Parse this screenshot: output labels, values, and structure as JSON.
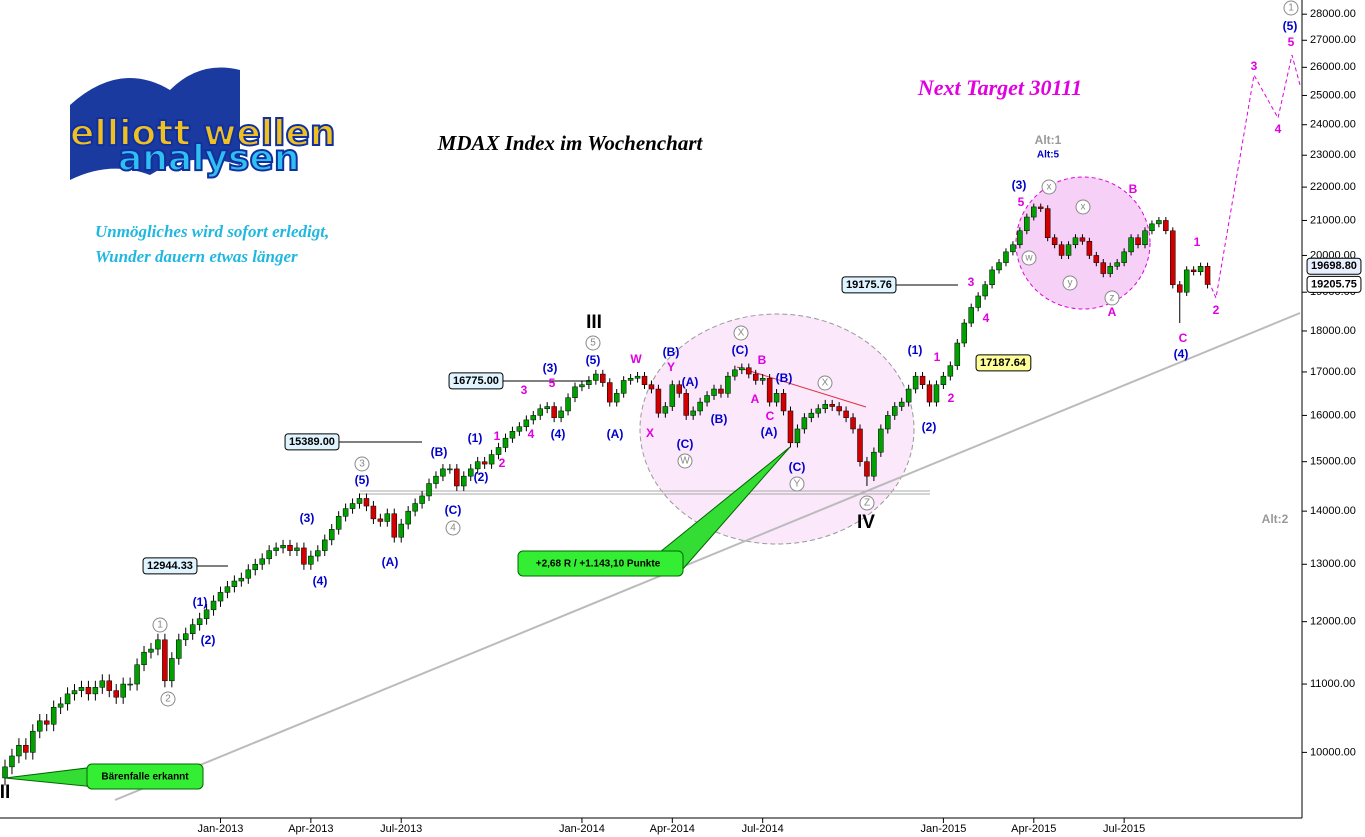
{
  "chart_data": {
    "type": "candlestick",
    "title": "MDAX Index im Wochenchart",
    "subtitle": "Next Target 30111",
    "motto": [
      "Unmögliches wird sofort erledigt,",
      "Wunder dauern etwas länger"
    ],
    "logo": [
      "elliott wellen",
      "analysen"
    ],
    "log_scale": true,
    "up_color": "#00a000",
    "down_color": "#d00000",
    "xlim": [
      -0.72,
      186.3
    ],
    "xticks": [
      {
        "value": 31,
        "label": "Jan-2013"
      },
      {
        "value": 44,
        "label": "Apr-2013"
      },
      {
        "value": 57,
        "label": "Jul-2013"
      },
      {
        "value": 83,
        "label": "Jan-2014"
      },
      {
        "value": 96,
        "label": "Apr-2014"
      },
      {
        "value": 109,
        "label": "Jul-2014"
      },
      {
        "value": 135,
        "label": "Jan-2015"
      },
      {
        "value": 148,
        "label": "Apr-2015"
      },
      {
        "value": 161,
        "label": "Jul-2015"
      }
    ],
    "ylim": [
      9100,
      28560
    ],
    "yticks": [
      {
        "value": 10000,
        "label": "10000.00"
      },
      {
        "value": 11000,
        "label": "11000.00"
      },
      {
        "value": 12000,
        "label": "12000.00"
      },
      {
        "value": 13000,
        "label": "13000.00"
      },
      {
        "value": 14000,
        "label": "14000.00"
      },
      {
        "value": 15000,
        "label": "15000.00"
      },
      {
        "value": 16000,
        "label": "16000.00"
      },
      {
        "value": 17000,
        "label": "17000.00"
      },
      {
        "value": 18000,
        "label": "18000.00"
      },
      {
        "value": 19000,
        "label": "19000.00"
      },
      {
        "value": 20000,
        "label": "20000.00"
      },
      {
        "value": 21000,
        "label": "21000.00"
      },
      {
        "value": 22000,
        "label": "22000.00"
      },
      {
        "value": 23000,
        "label": "23000.00"
      },
      {
        "value": 24000,
        "label": "24000.00"
      },
      {
        "value": 25000,
        "label": "25000.00"
      },
      {
        "value": 26000,
        "label": "26000.00"
      },
      {
        "value": 27000,
        "label": "27000.00"
      },
      {
        "value": 28000,
        "label": "28000.00"
      }
    ],
    "open": [
      9650,
      9800,
      9950,
      10100,
      10000,
      10300,
      10450,
      10400,
      10650,
      10700,
      10850,
      10900,
      10950,
      10850,
      10950,
      11050,
      10900,
      10800,
      11000,
      11000,
      11300,
      11500,
      11550,
      11700,
      11050,
      11400,
      11700,
      11800,
      11950,
      12050,
      12200,
      12350,
      12500,
      12600,
      12700,
      12750,
      12900,
      13000,
      13100,
      13250,
      13300,
      13350,
      13250,
      13300,
      13000,
      13150,
      13250,
      13450,
      13650,
      13900,
      14050,
      14150,
      14250,
      14100,
      13850,
      13800,
      13950,
      13500,
      13750,
      14000,
      14150,
      14300,
      14550,
      14700,
      14850,
      14850,
      14500,
      14700,
      14850,
      15000,
      14950,
      15150,
      15300,
      15500,
      15650,
      15750,
      15900,
      16000,
      16150,
      16200,
      15950,
      16100,
      16400,
      16650,
      16700,
      16800,
      16950,
      16750,
      16300,
      16500,
      16800,
      16850,
      16900,
      16700,
      16600,
      16050,
      16200,
      16700,
      16500,
      16000,
      16100,
      16300,
      16450,
      16600,
      16500,
      16900,
      17050,
      17100,
      16950,
      16800,
      16850,
      16300,
      16500,
      16100,
      15400,
      15700,
      15950,
      16050,
      16150,
      16250,
      16200,
      16100,
      15950,
      15700,
      15000,
      14700,
      15200,
      15700,
      16000,
      16200,
      16300,
      16600,
      16900,
      16700,
      16300,
      16700,
      16900,
      17150,
      17700,
      18200,
      18600,
      18900,
      19200,
      19600,
      19800,
      20100,
      20300,
      20700,
      21100,
      21400,
      21350,
      20500,
      20300,
      20000,
      20300,
      20500,
      20400,
      20000,
      19800,
      19500,
      19700,
      19800,
      20100,
      20500,
      20300,
      20700,
      20900,
      21000,
      20700,
      19200,
      19000,
      19600,
      19550,
      19700
    ],
    "high": [
      9900,
      10050,
      10200,
      10200,
      10400,
      10550,
      10550,
      10750,
      10800,
      10950,
      11000,
      11050,
      11050,
      11050,
      11150,
      11150,
      11000,
      11100,
      11100,
      11400,
      11600,
      11650,
      11800,
      11800,
      11500,
      11800,
      11900,
      12050,
      12150,
      12300,
      12450,
      12600,
      12700,
      12800,
      12850,
      13000,
      13100,
      13200,
      13350,
      13400,
      13450,
      13450,
      13400,
      13400,
      13250,
      13350,
      13550,
      13750,
      14000,
      14150,
      14250,
      14350,
      14350,
      14200,
      13950,
      14050,
      14050,
      13850,
      14100,
      14250,
      14400,
      14650,
      14800,
      14950,
      14950,
      14950,
      14800,
      14950,
      15100,
      15100,
      15250,
      15400,
      15600,
      15750,
      15850,
      16000,
      16100,
      16250,
      16300,
      16300,
      16200,
      16500,
      16750,
      16800,
      16900,
      17050,
      17050,
      16850,
      16600,
      16900,
      16950,
      17000,
      17000,
      16800,
      16700,
      16300,
      16800,
      16800,
      16600,
      16200,
      16400,
      16550,
      16700,
      16700,
      17000,
      17150,
      17200,
      17200,
      17050,
      16950,
      16950,
      16600,
      16600,
      16200,
      15800,
      16050,
      16150,
      16250,
      16350,
      16350,
      16300,
      16200,
      16050,
      15800,
      15100,
      15300,
      15800,
      16100,
      16300,
      16400,
      16700,
      17000,
      17000,
      16800,
      16800,
      17000,
      17250,
      17800,
      18300,
      18700,
      19000,
      19300,
      19700,
      19900,
      20200,
      20400,
      20800,
      21200,
      21500,
      21500,
      21450,
      20600,
      20400,
      20400,
      20600,
      20600,
      20500,
      20100,
      19900,
      19800,
      19900,
      20200,
      20600,
      20600,
      20800,
      21000,
      21100,
      21100,
      20800,
      19300,
      19700,
      19700,
      19800,
      19800
    ],
    "low": [
      9550,
      9700,
      9850,
      9900,
      9900,
      10200,
      10300,
      10300,
      10550,
      10600,
      10750,
      10800,
      10750,
      10750,
      10850,
      10800,
      10700,
      10700,
      10900,
      10900,
      11200,
      11400,
      11450,
      10950,
      10950,
      11300,
      11600,
      11700,
      11850,
      11950,
      12100,
      12250,
      12400,
      12500,
      12600,
      12650,
      12800,
      12900,
      13000,
      13150,
      13200,
      13150,
      13150,
      12900,
      12900,
      13050,
      13150,
      13350,
      13550,
      13800,
      13950,
      14050,
      14000,
      13750,
      13700,
      13700,
      13400,
      13400,
      13650,
      13900,
      14050,
      14200,
      14450,
      14600,
      14750,
      14400,
      14400,
      14600,
      14750,
      14850,
      14850,
      15050,
      15200,
      15400,
      15550,
      15650,
      15800,
      15900,
      16050,
      15850,
      15850,
      16000,
      16300,
      16550,
      16600,
      16700,
      16650,
      16200,
      16200,
      16400,
      16700,
      16750,
      16600,
      16500,
      15950,
      15950,
      16100,
      16400,
      15900,
      15900,
      16000,
      16200,
      16350,
      16400,
      16400,
      16800,
      16950,
      16850,
      16700,
      16700,
      16200,
      16200,
      16000,
      15300,
      15300,
      15600,
      15850,
      15950,
      16050,
      16100,
      16000,
      15850,
      15600,
      14900,
      14500,
      14600,
      15100,
      15600,
      15900,
      16100,
      16200,
      16500,
      16600,
      16200,
      16200,
      16600,
      16800,
      17050,
      17600,
      18100,
      18500,
      18800,
      19100,
      19500,
      19700,
      20000,
      20200,
      20600,
      21000,
      21250,
      20400,
      20200,
      19900,
      19900,
      20200,
      20300,
      19900,
      19700,
      19400,
      19400,
      19600,
      19700,
      20000,
      20200,
      20200,
      20600,
      20800,
      20600,
      19100,
      18200,
      18900,
      19450,
      19450,
      19100
    ],
    "close": [
      9800,
      9950,
      10100,
      10000,
      10300,
      10450,
      10400,
      10650,
      10700,
      10850,
      10900,
      10950,
      10850,
      10950,
      11050,
      10900,
      10800,
      11000,
      11000,
      11300,
      11500,
      11550,
      11700,
      11050,
      11400,
      11700,
      11800,
      11950,
      12050,
      12200,
      12350,
      12500,
      12600,
      12700,
      12750,
      12900,
      13000,
      13100,
      13250,
      13300,
      13350,
      13250,
      13300,
      13000,
      13150,
      13250,
      13450,
      13650,
      13900,
      14050,
      14150,
      14250,
      14100,
      13850,
      13800,
      13950,
      13500,
      13750,
      14000,
      14150,
      14300,
      14550,
      14700,
      14850,
      14850,
      14500,
      14700,
      14850,
      15000,
      14950,
      15150,
      15300,
      15500,
      15650,
      15750,
      15900,
      16000,
      16150,
      16200,
      15950,
      16100,
      16400,
      16650,
      16700,
      16800,
      16950,
      16750,
      16300,
      16500,
      16800,
      16850,
      16900,
      16700,
      16600,
      16050,
      16200,
      16700,
      16500,
      16000,
      16100,
      16300,
      16450,
      16600,
      16500,
      16900,
      17050,
      17100,
      16950,
      16800,
      16850,
      16300,
      16500,
      16100,
      15400,
      15700,
      15950,
      16050,
      16150,
      16250,
      16200,
      16100,
      15950,
      15700,
      15000,
      14700,
      15200,
      15700,
      16000,
      16200,
      16300,
      16600,
      16900,
      16700,
      16300,
      16700,
      16900,
      17150,
      17700,
      18200,
      18600,
      18900,
      19200,
      19600,
      19800,
      20100,
      20300,
      20700,
      21100,
      21400,
      21350,
      20500,
      20300,
      20000,
      20300,
      20500,
      20400,
      20000,
      19800,
      19500,
      19700,
      19800,
      20100,
      20500,
      20300,
      20700,
      20900,
      21000,
      20700,
      19200,
      19000,
      19600,
      19550,
      19700,
      19206
    ],
    "price_labels": [
      12944.33,
      {
        "value": 15389,
        "label": "15389.00"
      },
      {
        "value": 16775,
        "label": "16775.00"
      },
      19175.76,
      17187.64
    ],
    "last_prices": [
      {
        "value": 19698.8,
        "label": "19698.80"
      },
      19205.75
    ],
    "callouts": [
      "+2,68 R / +1.143,10 Punkte",
      "Bärenfalle erkannt"
    ],
    "waves_blue": [
      "(1)",
      "(2)",
      "(3)",
      "(4)",
      "(5)",
      "(A)",
      "(B)",
      "(C)",
      "(1)",
      "(2)",
      "(3)",
      "(4)",
      "(5)",
      "(A)",
      "(B)",
      "(A)",
      "(C)",
      "(B)",
      "(C)",
      "(B)",
      "(A)",
      "(C)",
      "(1)",
      "(2)",
      "(3)",
      "(5)",
      "(4)",
      "Alt:5"
    ],
    "waves_magenta": [
      "1",
      "2",
      "3",
      "4",
      "5",
      "W",
      "Y",
      "X",
      "B",
      "A",
      "C",
      "3",
      "4",
      "1",
      "2",
      "5",
      "B",
      "A",
      "1",
      "2",
      "C",
      "3",
      "4",
      "5"
    ],
    "waves_circled": [
      "5",
      "3",
      "4",
      "1",
      "2",
      "W",
      "X",
      "X",
      "Y",
      "Z",
      "x",
      "x",
      "w",
      "y",
      "z",
      "1"
    ],
    "waves_roman": [
      "III",
      "IV",
      "II"
    ],
    "alt_labels": [
      "Alt:1",
      "Alt:2"
    ]
  }
}
